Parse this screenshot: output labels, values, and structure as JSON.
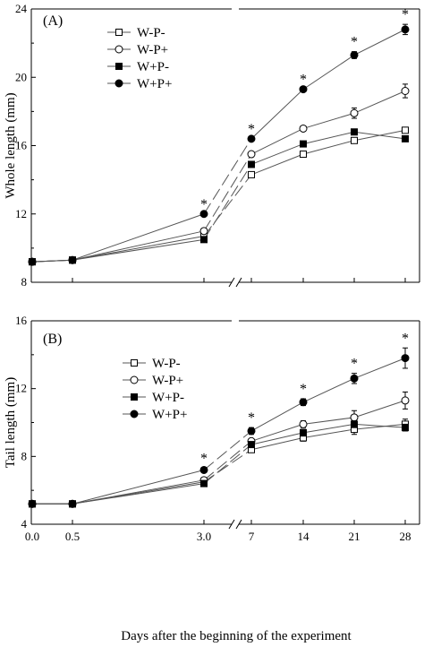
{
  "chart_data": [
    {
      "type": "line",
      "panel_label": "(A)",
      "ylabel": "Whole length (mm)",
      "xlabel": "",
      "ylim": [
        8,
        24
      ],
      "yticks": [
        8,
        12,
        16,
        20,
        24
      ],
      "x_tick_labels": [
        "0.0",
        "0.5",
        "3.0",
        "7",
        "14",
        "21",
        "28"
      ],
      "axis_break_between": [
        "3.0",
        "7"
      ],
      "legend_position": "top-left",
      "series": [
        {
          "name": "W-P-",
          "marker": "open-square",
          "values": [
            9.2,
            9.3,
            10.7,
            14.3,
            15.5,
            16.3,
            16.9
          ],
          "errors": [
            0,
            0,
            0,
            0,
            0,
            0,
            0
          ]
        },
        {
          "name": "W-P+",
          "marker": "open-circle",
          "values": [
            9.2,
            9.3,
            11.0,
            15.5,
            17.0,
            17.9,
            19.2
          ],
          "errors": [
            0,
            0,
            0,
            0,
            0.1,
            0.3,
            0.4
          ]
        },
        {
          "name": "W+P-",
          "marker": "filled-square",
          "values": [
            9.2,
            9.3,
            10.5,
            14.9,
            16.1,
            16.8,
            16.4
          ],
          "errors": [
            0,
            0,
            0,
            0,
            0,
            0,
            0
          ]
        },
        {
          "name": "W+P+",
          "marker": "filled-circle",
          "values": [
            9.2,
            9.3,
            12.0,
            16.4,
            19.3,
            21.3,
            22.8
          ],
          "errors": [
            0,
            0,
            0,
            0,
            0,
            0.2,
            0.3
          ]
        }
      ],
      "significance_markers": [
        {
          "x": "3.0",
          "label": "*"
        },
        {
          "x": "7",
          "label": "*"
        },
        {
          "x": "14",
          "label": "*"
        },
        {
          "x": "21",
          "label": "*"
        },
        {
          "x": "28",
          "label": "*"
        }
      ]
    },
    {
      "type": "line",
      "panel_label": "(B)",
      "ylabel": "Tail length (mm)",
      "xlabel": "Days after the beginning of the experiment",
      "ylim": [
        4,
        16
      ],
      "yticks": [
        4,
        8,
        12,
        16
      ],
      "x_tick_labels": [
        "0.0",
        "0.5",
        "3.0",
        "7",
        "14",
        "21",
        "28"
      ],
      "axis_break_between": [
        "3.0",
        "7"
      ],
      "legend_position": "top-left",
      "series": [
        {
          "name": "W-P-",
          "marker": "open-square",
          "values": [
            5.2,
            5.2,
            6.5,
            8.4,
            9.1,
            9.6,
            9.9
          ],
          "errors": [
            0,
            0,
            0,
            0,
            0.2,
            0.3,
            0.3
          ]
        },
        {
          "name": "W-P+",
          "marker": "open-circle",
          "values": [
            5.2,
            5.2,
            6.6,
            8.9,
            9.9,
            10.3,
            11.3
          ],
          "errors": [
            0,
            0,
            0,
            0.1,
            0.2,
            0.4,
            0.5
          ]
        },
        {
          "name": "W+P-",
          "marker": "filled-square",
          "values": [
            5.2,
            5.2,
            6.4,
            8.7,
            9.4,
            9.9,
            9.7
          ],
          "errors": [
            0,
            0,
            0,
            0.1,
            0.2,
            0.2,
            0.2
          ]
        },
        {
          "name": "W+P+",
          "marker": "filled-circle",
          "values": [
            5.2,
            5.2,
            7.2,
            9.5,
            11.2,
            12.6,
            13.8
          ],
          "errors": [
            0,
            0,
            0.1,
            0.2,
            0.2,
            0.3,
            0.6
          ]
        }
      ],
      "significance_markers": [
        {
          "x": "3.0",
          "label": "*"
        },
        {
          "x": "7",
          "label": "*"
        },
        {
          "x": "14",
          "label": "*"
        },
        {
          "x": "21",
          "label": "*"
        },
        {
          "x": "28",
          "label": "*"
        }
      ]
    }
  ]
}
